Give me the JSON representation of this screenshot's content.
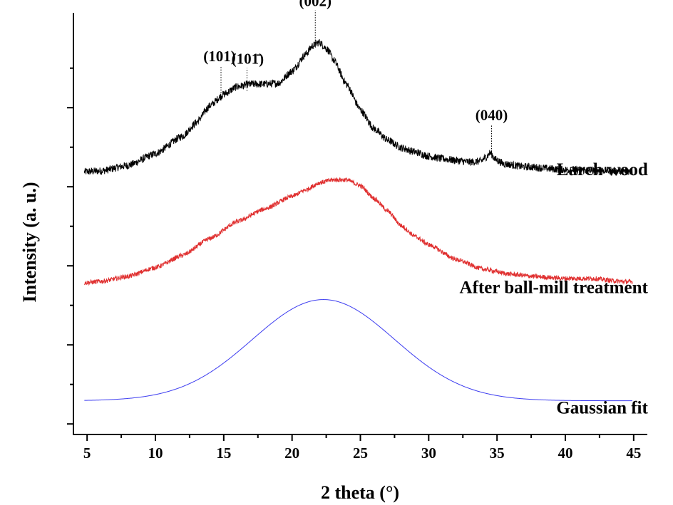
{
  "chart_data": {
    "type": "line",
    "title": "",
    "xlabel": "2 theta (°)",
    "ylabel": "Intensity (a. u.)",
    "xlim": [
      4,
      46
    ],
    "ylim": [
      0,
      100
    ],
    "yticks_labeled": false,
    "grid": false,
    "x_ticks": [
      "5",
      "10",
      "15",
      "20",
      "25",
      "30",
      "35",
      "40",
      "45"
    ],
    "series": [
      {
        "name": "Larch wood",
        "color": "#000000",
        "noise": 0.9,
        "label_x": 45,
        "label_y": 61.5,
        "points": [
          [
            4.8,
            62.3
          ],
          [
            6,
            62.5
          ],
          [
            8,
            63.8
          ],
          [
            10,
            66.6
          ],
          [
            12,
            70.8
          ],
          [
            13,
            74
          ],
          [
            14,
            78
          ],
          [
            15,
            80.7
          ],
          [
            16,
            82.5
          ],
          [
            17,
            83.1
          ],
          [
            18,
            83.1
          ],
          [
            19,
            83.3
          ],
          [
            20,
            86.2
          ],
          [
            21,
            90.2
          ],
          [
            21.5,
            92.2
          ],
          [
            22,
            93
          ],
          [
            22.6,
            91.3
          ],
          [
            23,
            89
          ],
          [
            24,
            83
          ],
          [
            25,
            77
          ],
          [
            26,
            72.5
          ],
          [
            27,
            69.8
          ],
          [
            28,
            68
          ],
          [
            29,
            67
          ],
          [
            30,
            66
          ],
          [
            31,
            65.4
          ],
          [
            32,
            65
          ],
          [
            33,
            64.6
          ],
          [
            33.8,
            64.8
          ],
          [
            34.2,
            65.8
          ],
          [
            34.5,
            66.8
          ],
          [
            34.9,
            65.2
          ],
          [
            35.5,
            64.2
          ],
          [
            37,
            63.5
          ],
          [
            40,
            62.8
          ],
          [
            43,
            62.6
          ],
          [
            44.9,
            62.4
          ]
        ]
      },
      {
        "name": "After ball-mill treatment",
        "color": "#e03030",
        "noise": 0.55,
        "label_x": 45,
        "label_y": 33.5,
        "points": [
          [
            4.8,
            36
          ],
          [
            6,
            36.3
          ],
          [
            8,
            37.5
          ],
          [
            10,
            39.6
          ],
          [
            12,
            42.5
          ],
          [
            14,
            46.5
          ],
          [
            16,
            50.5
          ],
          [
            18,
            53.5
          ],
          [
            20,
            56.5
          ],
          [
            21,
            58
          ],
          [
            22,
            59.7
          ],
          [
            23,
            60.4
          ],
          [
            24,
            60.4
          ],
          [
            25,
            59
          ],
          [
            26,
            56
          ],
          [
            27,
            53
          ],
          [
            28,
            49.5
          ],
          [
            29,
            47
          ],
          [
            30,
            45
          ],
          [
            32,
            41.5
          ],
          [
            34,
            39.2
          ],
          [
            36,
            38
          ],
          [
            38,
            37.4
          ],
          [
            40,
            37
          ],
          [
            42,
            37
          ],
          [
            44,
            36.3
          ],
          [
            44.9,
            36.2
          ]
        ]
      },
      {
        "name": "Gaussian fit",
        "color": "#3c3cf0",
        "noise": 0,
        "label_x": 45,
        "label_y": 5,
        "gaussian": {
          "baseline": 8,
          "amplitude": 24,
          "center": 22.3,
          "sigma": 5.2,
          "xmin": 4.8,
          "xmax": 44.9
        }
      }
    ],
    "annotations": [
      {
        "text": "(101)",
        "x": 14.8,
        "y": 79.2
      },
      {
        "text": "(101̄)",
        "x": 16.7,
        "y": 81.5
      },
      {
        "text": "(002)",
        "x": 21.7,
        "y": 92.8
      },
      {
        "text": "(040)",
        "x": 34.6,
        "y": 66.5
      }
    ]
  }
}
